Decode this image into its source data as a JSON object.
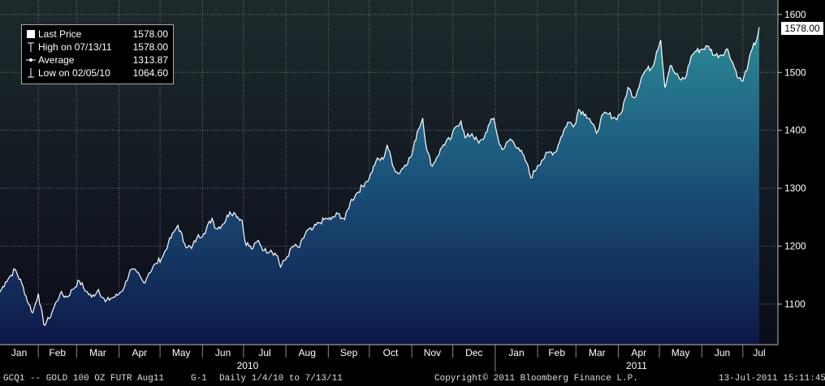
{
  "chart_data": {
    "type": "area",
    "x_range": [
      "2010-01-04",
      "2011-07-13"
    ],
    "ylim": [
      1030,
      1625
    ],
    "y_ticks": [
      1100,
      1200,
      1300,
      1400,
      1500,
      1600
    ],
    "month_labels": [
      "Jan",
      "Feb",
      "Mar",
      "Apr",
      "May",
      "Jun",
      "Jul",
      "Aug",
      "Sep",
      "Oct",
      "Nov",
      "Dec",
      "Jan",
      "Feb",
      "Mar",
      "Apr",
      "May",
      "Jun",
      "Jul"
    ],
    "year_labels": [
      "2010",
      "2011"
    ],
    "grid": true,
    "legend_position": "top-left",
    "series": [
      {
        "points": [
          [
            "2010-01-04",
            1121
          ],
          [
            "2010-01-08",
            1138
          ],
          [
            "2010-01-12",
            1150
          ],
          [
            "2010-01-15",
            1160
          ],
          [
            "2010-01-20",
            1135
          ],
          [
            "2010-01-25",
            1100
          ],
          [
            "2010-01-28",
            1085
          ],
          [
            "2010-02-01",
            1118
          ],
          [
            "2010-02-05",
            1064.6
          ],
          [
            "2010-02-09",
            1075
          ],
          [
            "2010-02-12",
            1092
          ],
          [
            "2010-02-17",
            1118
          ],
          [
            "2010-02-22",
            1112
          ],
          [
            "2010-02-26",
            1125
          ],
          [
            "2010-03-03",
            1140
          ],
          [
            "2010-03-08",
            1122
          ],
          [
            "2010-03-12",
            1112
          ],
          [
            "2010-03-17",
            1125
          ],
          [
            "2010-03-22",
            1104
          ],
          [
            "2010-03-26",
            1110
          ],
          [
            "2010-03-31",
            1115
          ],
          [
            "2010-04-05",
            1130
          ],
          [
            "2010-04-09",
            1158
          ],
          [
            "2010-04-14",
            1155
          ],
          [
            "2010-04-19",
            1137
          ],
          [
            "2010-04-23",
            1154
          ],
          [
            "2010-04-28",
            1170
          ],
          [
            "2010-05-03",
            1182
          ],
          [
            "2010-05-07",
            1205
          ],
          [
            "2010-05-12",
            1228
          ],
          [
            "2010-05-14",
            1236
          ],
          [
            "2010-05-19",
            1204
          ],
          [
            "2010-05-24",
            1196
          ],
          [
            "2010-05-28",
            1215
          ],
          [
            "2010-06-02",
            1222
          ],
          [
            "2010-06-08",
            1248
          ],
          [
            "2010-06-11",
            1230
          ],
          [
            "2010-06-16",
            1238
          ],
          [
            "2010-06-21",
            1259
          ],
          [
            "2010-06-25",
            1256
          ],
          [
            "2010-06-30",
            1244
          ],
          [
            "2010-07-02",
            1209
          ],
          [
            "2010-07-07",
            1195
          ],
          [
            "2010-07-12",
            1210
          ],
          [
            "2010-07-16",
            1192
          ],
          [
            "2010-07-21",
            1193
          ],
          [
            "2010-07-26",
            1183
          ],
          [
            "2010-07-28",
            1164
          ],
          [
            "2010-08-02",
            1182
          ],
          [
            "2010-08-06",
            1200
          ],
          [
            "2010-08-11",
            1198
          ],
          [
            "2010-08-16",
            1226
          ],
          [
            "2010-08-20",
            1228
          ],
          [
            "2010-08-25",
            1240
          ],
          [
            "2010-08-31",
            1248
          ],
          [
            "2010-09-03",
            1246
          ],
          [
            "2010-09-08",
            1256
          ],
          [
            "2010-09-13",
            1246
          ],
          [
            "2010-09-17",
            1276
          ],
          [
            "2010-09-22",
            1292
          ],
          [
            "2010-09-28",
            1310
          ],
          [
            "2010-10-01",
            1318
          ],
          [
            "2010-10-06",
            1348
          ],
          [
            "2010-10-11",
            1350
          ],
          [
            "2010-10-14",
            1375
          ],
          [
            "2010-10-19",
            1335
          ],
          [
            "2010-10-22",
            1325
          ],
          [
            "2010-10-27",
            1340
          ],
          [
            "2010-11-01",
            1357
          ],
          [
            "2010-11-05",
            1397
          ],
          [
            "2010-11-09",
            1421
          ],
          [
            "2010-11-12",
            1366
          ],
          [
            "2010-11-16",
            1338
          ],
          [
            "2010-11-19",
            1352
          ],
          [
            "2010-11-24",
            1375
          ],
          [
            "2010-11-30",
            1387
          ],
          [
            "2010-12-03",
            1406
          ],
          [
            "2010-12-07",
            1416
          ],
          [
            "2010-12-10",
            1387
          ],
          [
            "2010-12-15",
            1394
          ],
          [
            "2010-12-20",
            1378
          ],
          [
            "2010-12-23",
            1384
          ],
          [
            "2010-12-28",
            1412
          ],
          [
            "2010-12-31",
            1421
          ],
          [
            "2011-01-04",
            1376
          ],
          [
            "2011-01-07",
            1368
          ],
          [
            "2011-01-12",
            1385
          ],
          [
            "2011-01-18",
            1370
          ],
          [
            "2011-01-24",
            1344
          ],
          [
            "2011-01-27",
            1318
          ],
          [
            "2011-02-01",
            1339
          ],
          [
            "2011-02-04",
            1348
          ],
          [
            "2011-02-09",
            1362
          ],
          [
            "2011-02-14",
            1362
          ],
          [
            "2011-02-18",
            1388
          ],
          [
            "2011-02-23",
            1414
          ],
          [
            "2011-02-28",
            1409
          ],
          [
            "2011-03-03",
            1436
          ],
          [
            "2011-03-08",
            1428
          ],
          [
            "2011-03-11",
            1420
          ],
          [
            "2011-03-16",
            1395
          ],
          [
            "2011-03-21",
            1428
          ],
          [
            "2011-03-25",
            1428
          ],
          [
            "2011-03-30",
            1420
          ],
          [
            "2011-04-04",
            1434
          ],
          [
            "2011-04-08",
            1474
          ],
          [
            "2011-04-13",
            1456
          ],
          [
            "2011-04-18",
            1492
          ],
          [
            "2011-04-21",
            1504
          ],
          [
            "2011-04-26",
            1509
          ],
          [
            "2011-04-29",
            1536
          ],
          [
            "2011-05-02",
            1556
          ],
          [
            "2011-05-05",
            1474
          ],
          [
            "2011-05-09",
            1512
          ],
          [
            "2011-05-12",
            1500
          ],
          [
            "2011-05-16",
            1488
          ],
          [
            "2011-05-20",
            1490
          ],
          [
            "2011-05-24",
            1526
          ],
          [
            "2011-05-27",
            1536
          ],
          [
            "2011-06-01",
            1540
          ],
          [
            "2011-06-06",
            1545
          ],
          [
            "2011-06-10",
            1530
          ],
          [
            "2011-06-15",
            1530
          ],
          [
            "2011-06-20",
            1540
          ],
          [
            "2011-06-23",
            1520
          ],
          [
            "2011-06-28",
            1490
          ],
          [
            "2011-07-01",
            1485
          ],
          [
            "2011-07-05",
            1515
          ],
          [
            "2011-07-08",
            1542
          ],
          [
            "2011-07-11",
            1555
          ],
          [
            "2011-07-13",
            1578
          ]
        ]
      }
    ]
  },
  "legend": {
    "rows": [
      {
        "label": "Last Price",
        "value": "1578.00"
      },
      {
        "label": "High on 07/13/11",
        "value": "1578.00"
      },
      {
        "label": "Average",
        "value": "1313.87"
      },
      {
        "label": "Low on 02/05/10",
        "value": "1064.60"
      }
    ]
  },
  "last_price_tag": "1578.00",
  "footer": {
    "ticker": "GCQ1 -- GOLD 100 OZ FUTR  Aug11",
    "page": "G-1",
    "period": "Daily  1/4/10 to 7/13/11",
    "copyright": "Copyright© 2011 Bloomberg Finance L.P.",
    "timestamp": "13-Jul-2011 15:11:45"
  },
  "colors": {
    "background_top": "#1d2a2c",
    "background_bottom": "#0a0c1a",
    "area_top": "#2b8a96",
    "area_mid": "#1a4f78",
    "area_bottom": "#0d1848",
    "line": "#ffffff",
    "grid": "#7a7a7a"
  }
}
